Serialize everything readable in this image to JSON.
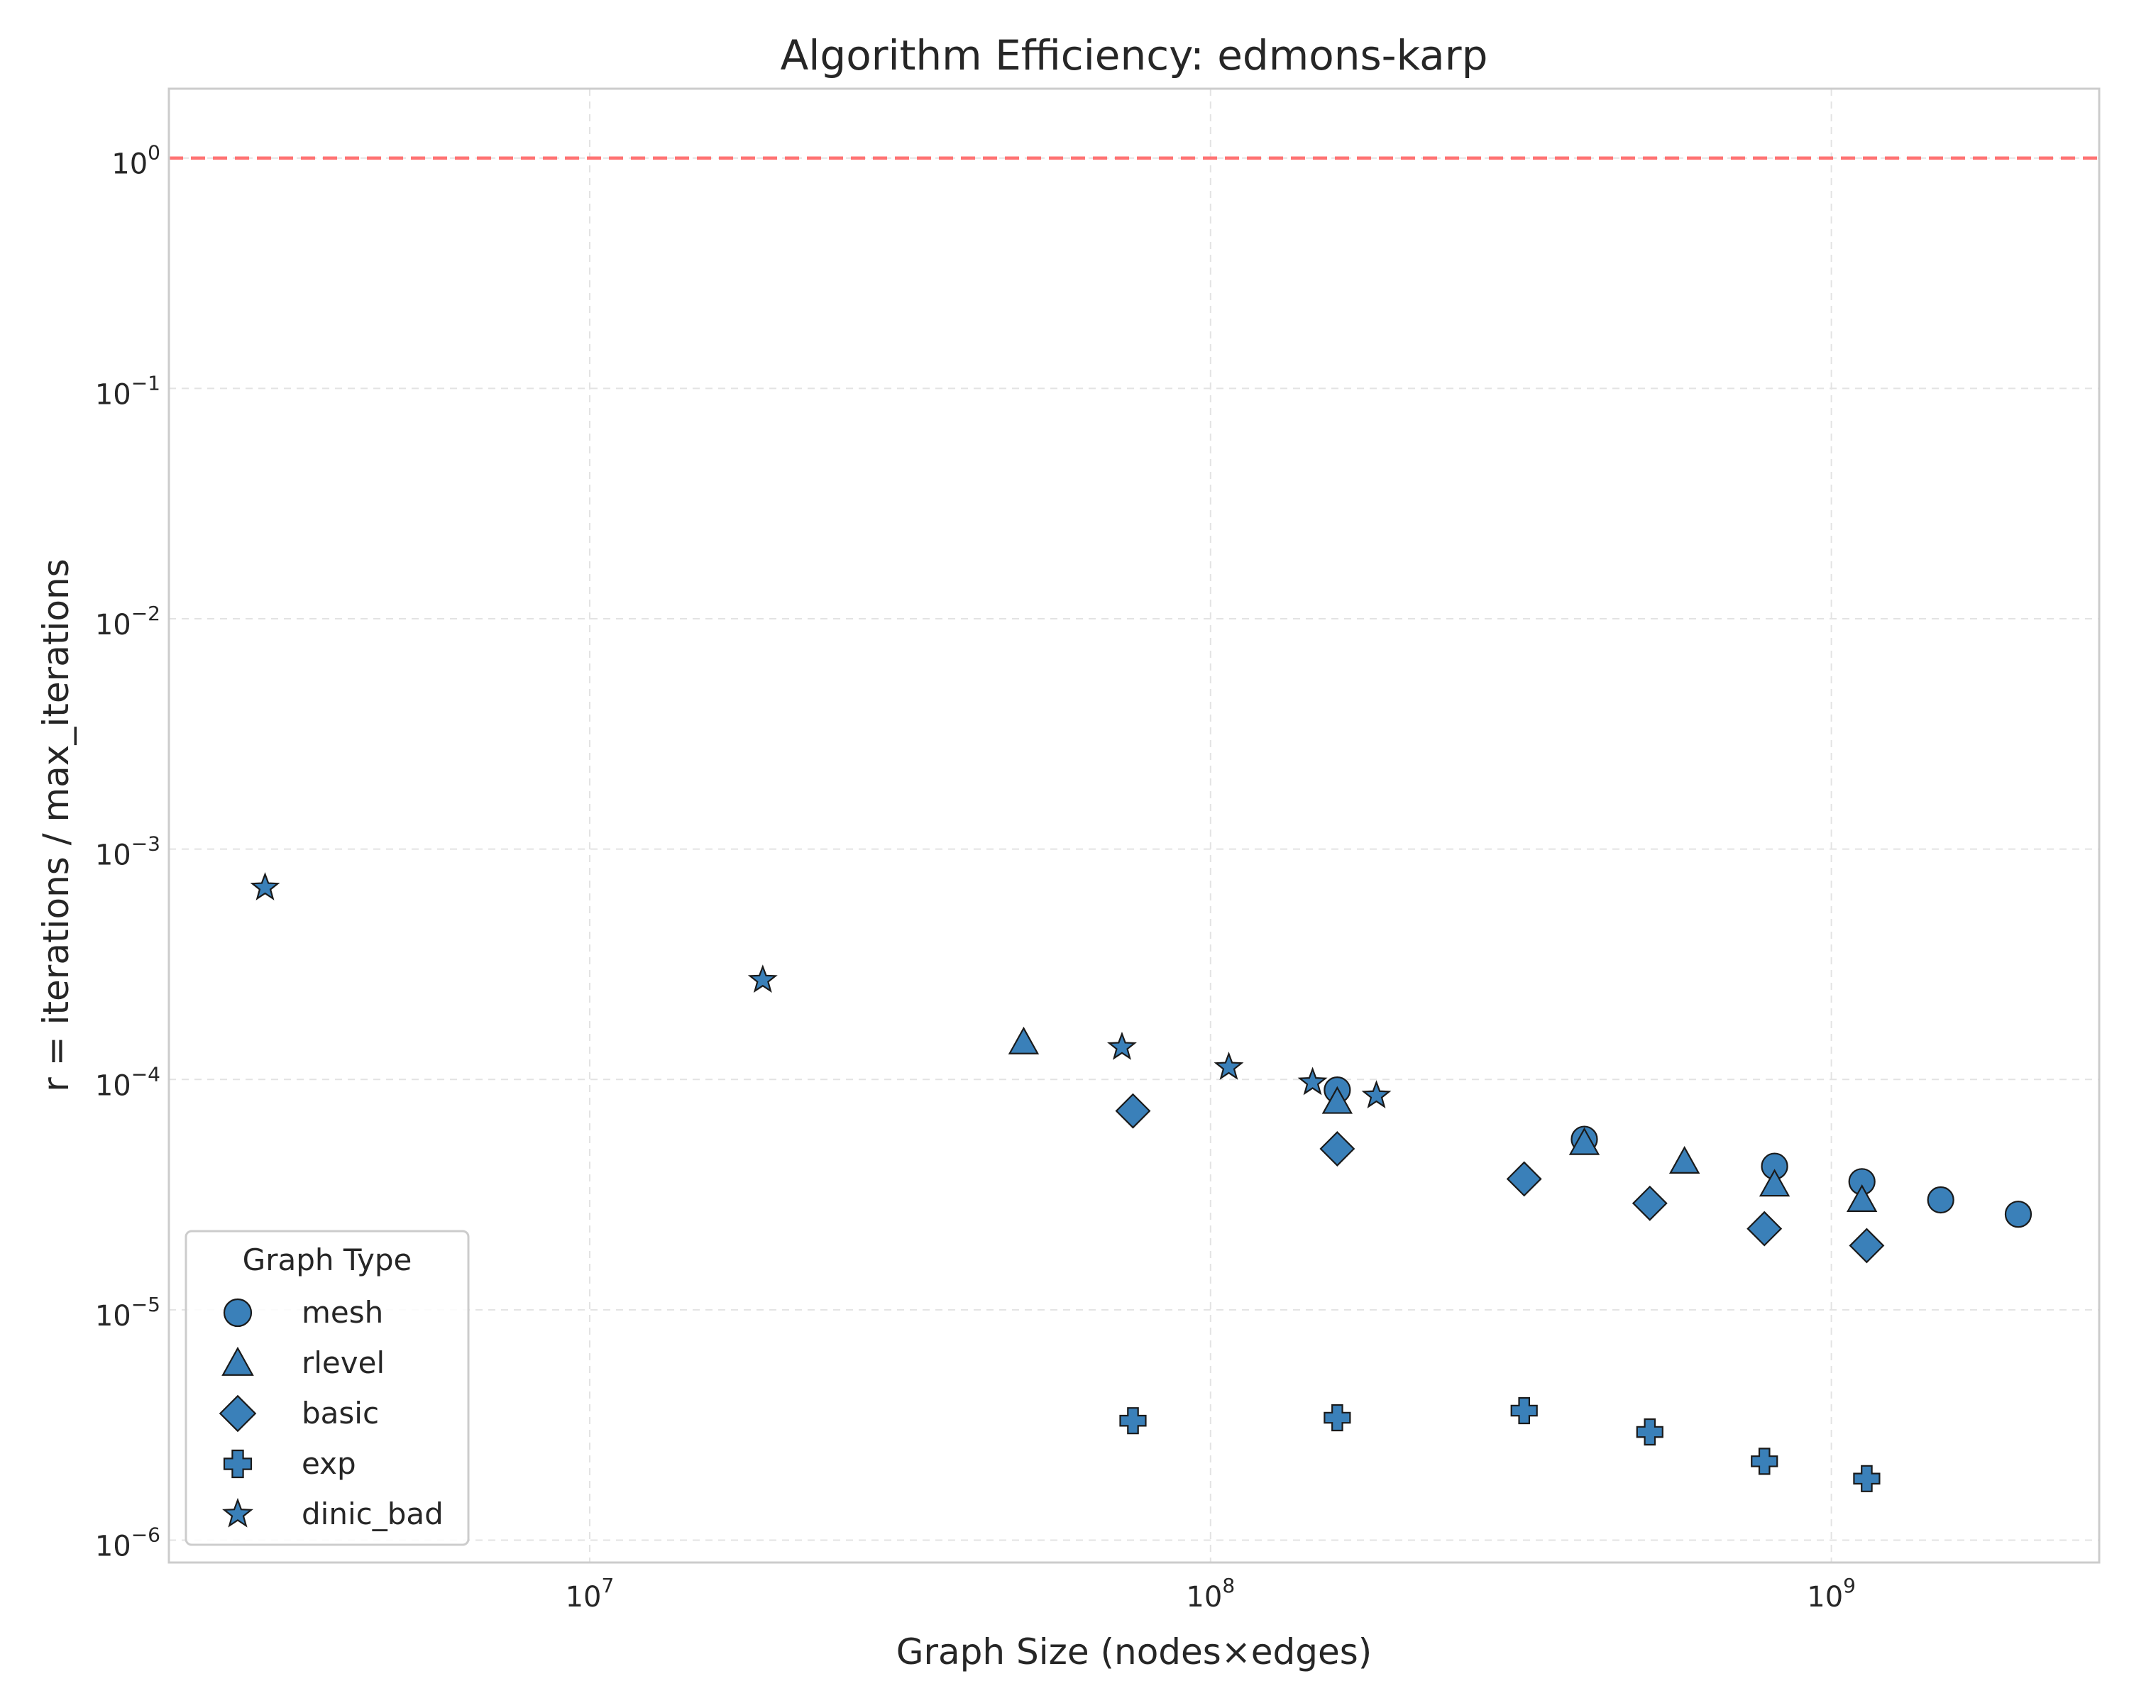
{
  "chart_data": {
    "type": "scatter",
    "title": "Algorithm Efficiency: edmons-karp",
    "xlabel": "Graph Size (nodes×edges)",
    "ylabel": "r = iterations / max_iterations",
    "xscale": "log",
    "yscale": "log",
    "xlim": [
      2100000.0,
      2700000000.0
    ],
    "ylim": [
      8e-07,
      2.0
    ],
    "xticks": [
      {
        "value": 10000000.0,
        "base": "10",
        "exp": "7"
      },
      {
        "value": 100000000.0,
        "base": "10",
        "exp": "8"
      },
      {
        "value": 1000000000.0,
        "base": "10",
        "exp": "9"
      }
    ],
    "yticks": [
      {
        "value": 1,
        "base": "10",
        "exp": "0"
      },
      {
        "value": 0.1,
        "base": "10",
        "exp": "−1"
      },
      {
        "value": 0.01,
        "base": "10",
        "exp": "−2"
      },
      {
        "value": 0.001,
        "base": "10",
        "exp": "−3"
      },
      {
        "value": 0.0001,
        "base": "10",
        "exp": "−4"
      },
      {
        "value": 1e-05,
        "base": "10",
        "exp": "−5"
      },
      {
        "value": 1e-06,
        "base": "10",
        "exp": "−6"
      }
    ],
    "grid": true,
    "reference_line": {
      "y": 1.0,
      "style": "dashed",
      "color": "#ff6b6b"
    },
    "marker_color": "#3a80b9",
    "legend": {
      "title": "Graph Type",
      "placement": "lower-left",
      "entries": [
        "mesh",
        "rlevel",
        "basic",
        "exp",
        "dinic_bad"
      ]
    },
    "series": [
      {
        "name": "mesh",
        "marker": "circle",
        "points": [
          {
            "x": 160000000.0,
            "y": 9e-05
          },
          {
            "x": 400000000.0,
            "y": 5.5e-05
          },
          {
            "x": 810000000.0,
            "y": 4.2e-05
          },
          {
            "x": 1120000000.0,
            "y": 3.6e-05
          },
          {
            "x": 1500000000.0,
            "y": 3e-05
          },
          {
            "x": 2000000000.0,
            "y": 2.6e-05
          }
        ]
      },
      {
        "name": "rlevel",
        "marker": "triangle",
        "points": [
          {
            "x": 50000000.0,
            "y": 0.000145
          },
          {
            "x": 160000000.0,
            "y": 8e-05
          },
          {
            "x": 400000000.0,
            "y": 5.3e-05
          },
          {
            "x": 580000000.0,
            "y": 4.4e-05
          },
          {
            "x": 810000000.0,
            "y": 3.5e-05
          },
          {
            "x": 1120000000.0,
            "y": 3e-05
          }
        ]
      },
      {
        "name": "basic",
        "marker": "diamond",
        "points": [
          {
            "x": 75000000.0,
            "y": 7.3e-05
          },
          {
            "x": 160000000.0,
            "y": 5e-05
          },
          {
            "x": 320000000.0,
            "y": 3.7e-05
          },
          {
            "x": 510000000.0,
            "y": 2.9e-05
          },
          {
            "x": 780000000.0,
            "y": 2.25e-05
          },
          {
            "x": 1140000000.0,
            "y": 1.9e-05
          }
        ]
      },
      {
        "name": "exp",
        "marker": "plus",
        "points": [
          {
            "x": 75000000.0,
            "y": 3.3e-06
          },
          {
            "x": 160000000.0,
            "y": 3.4e-06
          },
          {
            "x": 320000000.0,
            "y": 3.65e-06
          },
          {
            "x": 510000000.0,
            "y": 2.95e-06
          },
          {
            "x": 780000000.0,
            "y": 2.2e-06
          },
          {
            "x": 1140000000.0,
            "y": 1.85e-06
          }
        ]
      },
      {
        "name": "dinic_bad",
        "marker": "star",
        "points": [
          {
            "x": 3000000.0,
            "y": 0.00068
          },
          {
            "x": 19000000.0,
            "y": 0.00027
          },
          {
            "x": 72000000.0,
            "y": 0.000138
          },
          {
            "x": 107000000.0,
            "y": 0.000113
          },
          {
            "x": 146000000.0,
            "y": 9.7e-05
          },
          {
            "x": 185000000.0,
            "y": 8.5e-05
          }
        ]
      }
    ]
  }
}
